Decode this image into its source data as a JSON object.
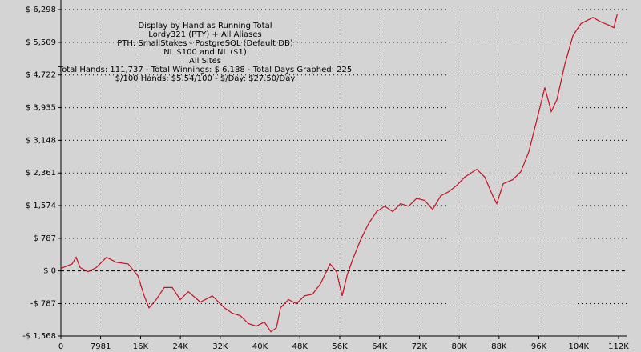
{
  "chart_data": {
    "type": "line",
    "annotations": [
      "Display by Hand as Running Total",
      "Lordy321 (PTY) + All Aliases",
      "PTH: SmallStakes - PostgreSQL (Default DB)",
      "NL $100 and NL ($1)",
      "All Sites",
      "Total Hands: 111,737 - Total Winnings: $ 6,188 - Total Days Graphed: 225",
      "$/100 Hands: $5.54/100 - $/Day: $27.50/Day"
    ],
    "x": [
      0,
      2250,
      3060,
      3860,
      5470,
      7080,
      9170,
      11100,
      13500,
      15450,
      16740,
      17700,
      19150,
      20760,
      22370,
      23980,
      25590,
      28000,
      30420,
      32830,
      34440,
      36050,
      37660,
      39270,
      40880,
      42160,
      43290,
      44090,
      45700,
      47310,
      48920,
      50530,
      52140,
      54070,
      55360,
      56490,
      57450,
      58580,
      60190,
      61800,
      63410,
      65020,
      66630,
      68230,
      69840,
      71450,
      73060,
      74670,
      76280,
      77880,
      79490,
      81100,
      83520,
      85130,
      86740,
      87540,
      88830,
      90760,
      92370,
      93980,
      95590,
      97200,
      98490,
      99620,
      101230,
      102840,
      104450,
      106860,
      108470,
      110080,
      111050,
      111737
    ],
    "series": [
      {
        "color": "#c8101e",
        "values": [
          60,
          170,
          330,
          80,
          -20,
          80,
          330,
          210,
          170,
          -115,
          -600,
          -890,
          -690,
          -400,
          -400,
          -690,
          -500,
          -750,
          -600,
          -890,
          -1020,
          -1080,
          -1270,
          -1330,
          -1230,
          -1465,
          -1370,
          -890,
          -690,
          -790,
          -600,
          -560,
          -310,
          170,
          -20,
          -600,
          -115,
          270,
          750,
          1140,
          1430,
          1560,
          1430,
          1620,
          1560,
          1750,
          1700,
          1480,
          1810,
          1910,
          2060,
          2260,
          2450,
          2260,
          1810,
          1620,
          2100,
          2200,
          2390,
          2870,
          3640,
          4420,
          3840,
          4130,
          4990,
          5670,
          5960,
          6110,
          6000,
          5920,
          5860,
          6188
        ]
      }
    ],
    "xlim": [
      0,
      112000
    ],
    "xticks": [
      0,
      7981,
      {
        "value": 16000,
        "label": "16K"
      },
      {
        "value": 24000,
        "label": "24K"
      },
      {
        "value": 32000,
        "label": "32K"
      },
      {
        "value": 40000,
        "label": "40K"
      },
      {
        "value": 48000,
        "label": "48K"
      },
      {
        "value": 56000,
        "label": "56K"
      },
      {
        "value": 64000,
        "label": "64K"
      },
      {
        "value": 72000,
        "label": "72K"
      },
      {
        "value": 80000,
        "label": "80K"
      },
      {
        "value": 88000,
        "label": "88K"
      },
      {
        "value": 96000,
        "label": "96K"
      },
      {
        "value": 104000,
        "label": "104K"
      },
      {
        "value": 112000,
        "label": "112K"
      }
    ],
    "ylim": [
      -1568,
      6298
    ],
    "yticks": [
      {
        "value": -1568,
        "label": "-$ 1,568"
      },
      {
        "value": -787,
        "label": "-$ 787"
      },
      {
        "value": 0,
        "label": "$ 0"
      },
      {
        "value": 787,
        "label": "$ 787"
      },
      {
        "value": 1574,
        "label": "$ 1,574"
      },
      {
        "value": 2361,
        "label": "$ 2,361"
      },
      {
        "value": 3148,
        "label": "$ 3,148"
      },
      {
        "value": 3935,
        "label": "$ 3,935"
      },
      {
        "value": 4722,
        "label": "$ 4,722"
      },
      {
        "value": 5509,
        "label": "$ 5,509"
      },
      {
        "value": 6298,
        "label": "$ 6,298"
      }
    ],
    "grid": true
  }
}
